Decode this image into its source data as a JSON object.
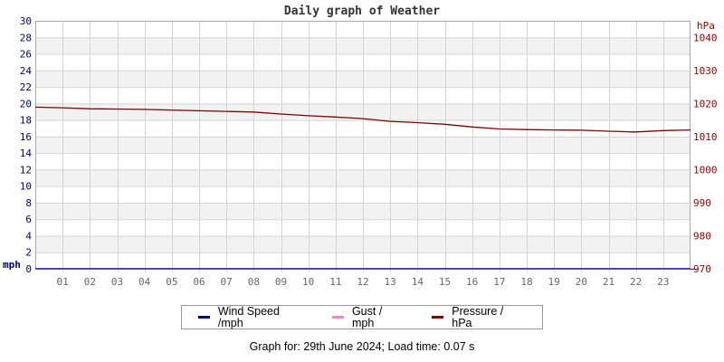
{
  "title": "Daily graph of Weather",
  "footer": "Graph for: 29th June 2024; Load time: 0.07 s",
  "legend": [
    {
      "label": "Wind Speed /mph",
      "color": "#000080"
    },
    {
      "label": "Gust / mph",
      "color": "#ff7fbf"
    },
    {
      "label": "Pressure / hPa",
      "color": "#800000"
    }
  ],
  "colors": {
    "grid": "#d4d4d4",
    "band": "#f2f2f2",
    "border": "#aaaaaa",
    "left_axis_text": "#000080",
    "right_axis_text": "#990000",
    "x_axis_text": "#666666",
    "title_text": "#333333"
  },
  "chart_data": {
    "type": "line",
    "title": "Daily graph of Weather",
    "x": [
      0,
      1,
      2,
      3,
      4,
      5,
      6,
      7,
      8,
      9,
      10,
      11,
      12,
      13,
      14,
      15,
      16,
      17,
      18,
      19,
      20,
      21,
      22,
      23,
      24
    ],
    "x_tick_labels": [
      "01",
      "02",
      "03",
      "04",
      "05",
      "06",
      "07",
      "08",
      "09",
      "10",
      "11",
      "12",
      "13",
      "14",
      "15",
      "16",
      "17",
      "18",
      "19",
      "20",
      "21",
      "22",
      "23"
    ],
    "left_axis": {
      "unit": "mph",
      "min": 0,
      "max": 30,
      "step": 2,
      "color": "#000080"
    },
    "right_axis": {
      "unit": "hPa",
      "min": 970,
      "max": 1045,
      "labels": [
        970,
        980,
        990,
        1000,
        1010,
        1020,
        1030,
        1040
      ],
      "color": "#990000"
    },
    "grid": true,
    "legend_position": "bottom",
    "series": [
      {
        "name": "Gust / mph",
        "axis": "left",
        "color": "#ff7fbf",
        "values": [
          0,
          0,
          0,
          0,
          0,
          0,
          0,
          0,
          0,
          0,
          0,
          0,
          0,
          0,
          0,
          0,
          0,
          0,
          0,
          0,
          0,
          0,
          0,
          0,
          0
        ]
      },
      {
        "name": "Pressure / hPa",
        "axis": "right",
        "color": "#800000",
        "values": [
          1018.9,
          1018.7,
          1018.4,
          1018.3,
          1018.2,
          1018.0,
          1017.8,
          1017.6,
          1017.4,
          1016.8,
          1016.3,
          1015.9,
          1015.4,
          1014.6,
          1014.2,
          1013.7,
          1012.9,
          1012.3,
          1012.1,
          1012.0,
          1011.9,
          1011.6,
          1011.4,
          1011.8,
          1012.0
        ]
      },
      {
        "name": "Wind Speed /mph",
        "axis": "left",
        "color": "#000080",
        "values": [
          0,
          0,
          0,
          0,
          0,
          0,
          0,
          0,
          0,
          0,
          0,
          0,
          0,
          0,
          0,
          0,
          0,
          0,
          0,
          0,
          0,
          0,
          0,
          0,
          0
        ]
      }
    ]
  }
}
